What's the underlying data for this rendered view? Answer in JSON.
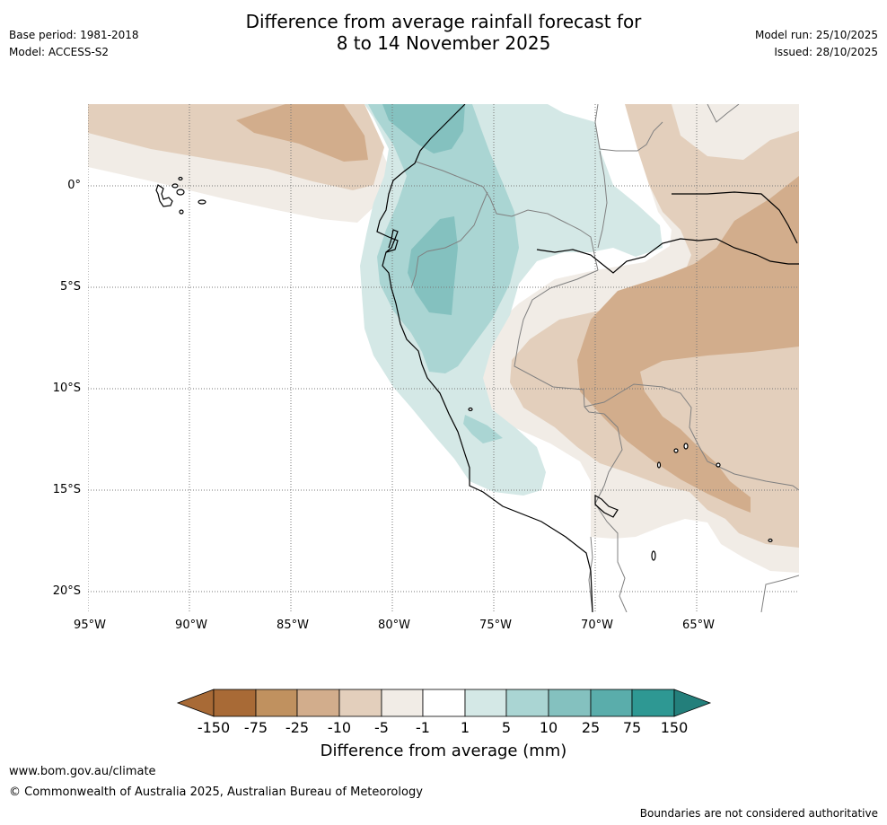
{
  "header": {
    "title_line1": "Difference from average rainfall forecast for",
    "title_line2": "8 to 14 November 2025",
    "base_period": "Base period: 1981-2018",
    "model": "Model: ACCESS-S2",
    "model_run": "Model run: 25/10/2025",
    "issued": "Issued: 28/10/2025"
  },
  "map": {
    "lat_labels": [
      "0°",
      "5°S",
      "10°S",
      "15°S",
      "20°S"
    ],
    "lon_labels": [
      "95°W",
      "90°W",
      "85°W",
      "80°W",
      "75°W",
      "70°W",
      "65°W"
    ],
    "colors": {
      "dry150": "#a86a36",
      "dry75": "#c0915f",
      "dry25": "#d2ad8c",
      "dry10": "#e3cfbc",
      "dry5": "#f1ece6",
      "neutral": "#ffffff",
      "wet1": "#d4e8e6",
      "wet5": "#aad5d3",
      "wet10": "#84c1bf",
      "wet25": "#5aadab",
      "wet75": "#2e9893",
      "wet150": "#237f7b",
      "coast": "#000000",
      "border": "#808080",
      "grid": "#777777"
    }
  },
  "colorbar": {
    "ticks": [
      "-150",
      "-75",
      "-25",
      "-10",
      "-5",
      "-1",
      "1",
      "5",
      "10",
      "25",
      "75",
      "150"
    ],
    "label": "Difference from average (mm)"
  },
  "footer": {
    "website": "www.bom.gov.au/climate",
    "copyright": "© Commonwealth of Australia 2025, Australian Bureau of Meteorology",
    "disclaimer": "Boundaries are not considered authoritative"
  }
}
